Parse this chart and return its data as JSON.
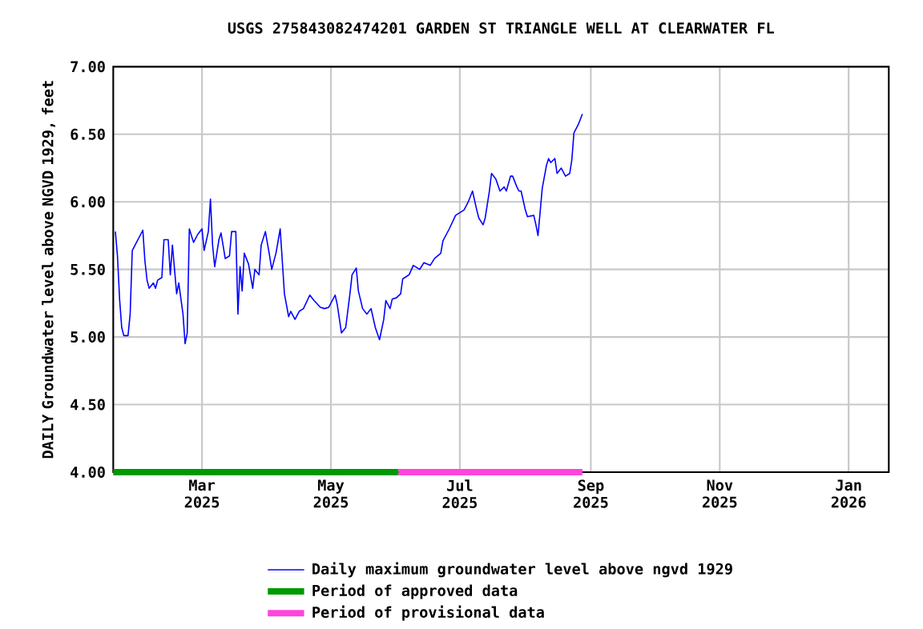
{
  "chart_data": {
    "type": "line",
    "title": "USGS 275843082474201 GARDEN ST TRIANGLE WELL AT CLEARWATER FL",
    "ylabel": "DAILY Groundwater level above NGVD 1929, feet",
    "xlim": [
      "2025-01-18",
      "2026-01-20"
    ],
    "ylim": [
      4.0,
      7.0
    ],
    "xticks": [
      {
        "value": "2025-03-01",
        "label": "Mar 2025"
      },
      {
        "value": "2025-05-01",
        "label": "May 2025"
      },
      {
        "value": "2025-07-01",
        "label": "Jul 2025"
      },
      {
        "value": "2025-09-01",
        "label": "Sep 2025"
      },
      {
        "value": "2025-11-01",
        "label": "Nov 2025"
      },
      {
        "value": "2026-01-01",
        "label": "Jan 2026"
      }
    ],
    "yticks": [
      {
        "value": 4.0,
        "label": "4.00"
      },
      {
        "value": 4.5,
        "label": "4.50"
      },
      {
        "value": 5.0,
        "label": "5.00"
      },
      {
        "value": 5.5,
        "label": "5.50"
      },
      {
        "value": 6.0,
        "label": "6.00"
      },
      {
        "value": 6.5,
        "label": "6.50"
      },
      {
        "value": 7.0,
        "label": "7.00"
      }
    ],
    "grid": true,
    "legend": "bottom",
    "series": [
      {
        "name": "Daily maximum groundwater level above ngvd 1929",
        "color": "#0000ff",
        "x": [
          "2025-01-19",
          "2025-01-20",
          "2025-01-21",
          "2025-01-22",
          "2025-01-23",
          "2025-01-25",
          "2025-01-26",
          "2025-01-27",
          "2025-01-29",
          "2025-01-31",
          "2025-02-01",
          "2025-02-02",
          "2025-02-03",
          "2025-02-04",
          "2025-02-06",
          "2025-02-07",
          "2025-02-08",
          "2025-02-10",
          "2025-02-11",
          "2025-02-13",
          "2025-02-14",
          "2025-02-15",
          "2025-02-16",
          "2025-02-17",
          "2025-02-18",
          "2025-02-20",
          "2025-02-21",
          "2025-02-22",
          "2025-02-23",
          "2025-02-25",
          "2025-02-27",
          "2025-03-01",
          "2025-03-02",
          "2025-03-04",
          "2025-03-05",
          "2025-03-06",
          "2025-03-07",
          "2025-03-09",
          "2025-03-10",
          "2025-03-12",
          "2025-03-14",
          "2025-03-15",
          "2025-03-17",
          "2025-03-18",
          "2025-03-19",
          "2025-03-20",
          "2025-03-21",
          "2025-03-23",
          "2025-03-25",
          "2025-03-26",
          "2025-03-28",
          "2025-03-29",
          "2025-03-31",
          "2025-04-02",
          "2025-04-03",
          "2025-04-05",
          "2025-04-07",
          "2025-04-08",
          "2025-04-09",
          "2025-04-11",
          "2025-04-12",
          "2025-04-14",
          "2025-04-16",
          "2025-04-18",
          "2025-04-21",
          "2025-04-23",
          "2025-04-26",
          "2025-04-28",
          "2025-04-30",
          "2025-05-03",
          "2025-05-04",
          "2025-05-06",
          "2025-05-08",
          "2025-05-10",
          "2025-05-11",
          "2025-05-13",
          "2025-05-14",
          "2025-05-16",
          "2025-05-18",
          "2025-05-20",
          "2025-05-22",
          "2025-05-24",
          "2025-05-26",
          "2025-05-27",
          "2025-05-29",
          "2025-05-30",
          "2025-06-01",
          "2025-06-03",
          "2025-06-04",
          "2025-06-07",
          "2025-06-09",
          "2025-06-12",
          "2025-06-14",
          "2025-06-17",
          "2025-06-19",
          "2025-06-22",
          "2025-06-23",
          "2025-06-26",
          "2025-06-29",
          "2025-07-03",
          "2025-07-05",
          "2025-07-07",
          "2025-07-09",
          "2025-07-10",
          "2025-07-12",
          "2025-07-13",
          "2025-07-15",
          "2025-07-16",
          "2025-07-18",
          "2025-07-20",
          "2025-07-22",
          "2025-07-23",
          "2025-07-25",
          "2025-07-26",
          "2025-07-28",
          "2025-07-29",
          "2025-07-30",
          "2025-08-01",
          "2025-08-02",
          "2025-08-05",
          "2025-08-06",
          "2025-08-07",
          "2025-08-09",
          "2025-08-11",
          "2025-08-12",
          "2025-08-13",
          "2025-08-15",
          "2025-08-16",
          "2025-08-18",
          "2025-08-20",
          "2025-08-22",
          "2025-08-23",
          "2025-08-24",
          "2025-08-26",
          "2025-08-28"
        ],
        "values": [
          5.78,
          5.6,
          5.28,
          5.07,
          5.01,
          5.01,
          5.17,
          5.64,
          5.7,
          5.76,
          5.79,
          5.56,
          5.42,
          5.36,
          5.4,
          5.36,
          5.42,
          5.44,
          5.72,
          5.72,
          5.46,
          5.68,
          5.5,
          5.32,
          5.4,
          5.17,
          4.95,
          5.03,
          5.8,
          5.7,
          5.76,
          5.8,
          5.64,
          5.78,
          6.02,
          5.68,
          5.52,
          5.72,
          5.77,
          5.58,
          5.6,
          5.78,
          5.78,
          5.17,
          5.52,
          5.34,
          5.62,
          5.54,
          5.36,
          5.5,
          5.46,
          5.68,
          5.78,
          5.6,
          5.5,
          5.62,
          5.8,
          5.56,
          5.32,
          5.15,
          5.19,
          5.13,
          5.19,
          5.21,
          5.31,
          5.27,
          5.22,
          5.21,
          5.22,
          5.31,
          5.24,
          5.03,
          5.07,
          5.32,
          5.46,
          5.51,
          5.34,
          5.21,
          5.17,
          5.21,
          5.07,
          4.98,
          5.13,
          5.27,
          5.21,
          5.28,
          5.29,
          5.32,
          5.43,
          5.46,
          5.53,
          5.5,
          5.55,
          5.53,
          5.58,
          5.62,
          5.71,
          5.8,
          5.9,
          5.94,
          6.0,
          6.08,
          5.94,
          5.88,
          5.83,
          5.88,
          6.08,
          6.21,
          6.17,
          6.08,
          6.11,
          6.08,
          6.19,
          6.19,
          6.11,
          6.08,
          6.08,
          5.94,
          5.89,
          5.9,
          5.83,
          5.75,
          6.1,
          6.27,
          6.32,
          6.29,
          6.32,
          6.21,
          6.25,
          6.19,
          6.21,
          6.31,
          6.51,
          6.57,
          6.65
        ]
      },
      {
        "name": "Period of approved data",
        "color": "#009900",
        "x": [
          "2025-01-18",
          "2025-06-02"
        ],
        "values": [
          4.0,
          4.0
        ]
      },
      {
        "name": "Period of provisional data",
        "color": "#ff44dd",
        "x": [
          "2025-06-02",
          "2025-08-28"
        ],
        "values": [
          4.0,
          4.0
        ]
      }
    ]
  }
}
